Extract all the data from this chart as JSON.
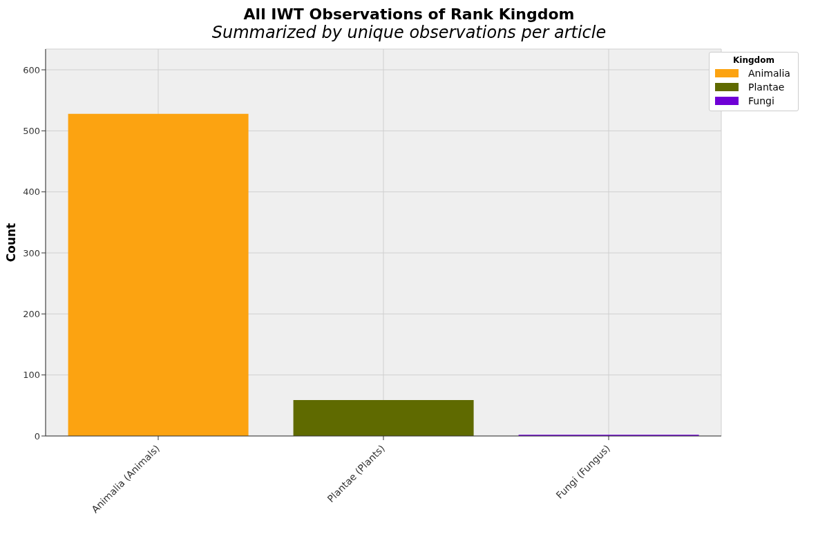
{
  "chart_data": {
    "type": "bar",
    "title": "All IWT Observations of Rank Kingdom",
    "subtitle": "Summarized by unique observations per article",
    "ylabel": "Count",
    "categories": [
      "Animalia (Animals)",
      "Plantae (Plants)",
      "Fungi (Fungus)"
    ],
    "series": [
      {
        "name": "Animalia",
        "color": "#fca311",
        "values": [
          528,
          null,
          null
        ]
      },
      {
        "name": "Plantae",
        "color": "#5f6a00",
        "values": [
          null,
          59,
          null
        ]
      },
      {
        "name": "Fungi",
        "color": "#6f00d6",
        "values": [
          null,
          null,
          2
        ]
      }
    ],
    "stacked": true,
    "ylim": [
      0,
      634
    ],
    "yticks": [
      0,
      100,
      200,
      300,
      400,
      500,
      600
    ],
    "grid": true,
    "legend": "top right",
    "legend_title": "Kingdom"
  }
}
